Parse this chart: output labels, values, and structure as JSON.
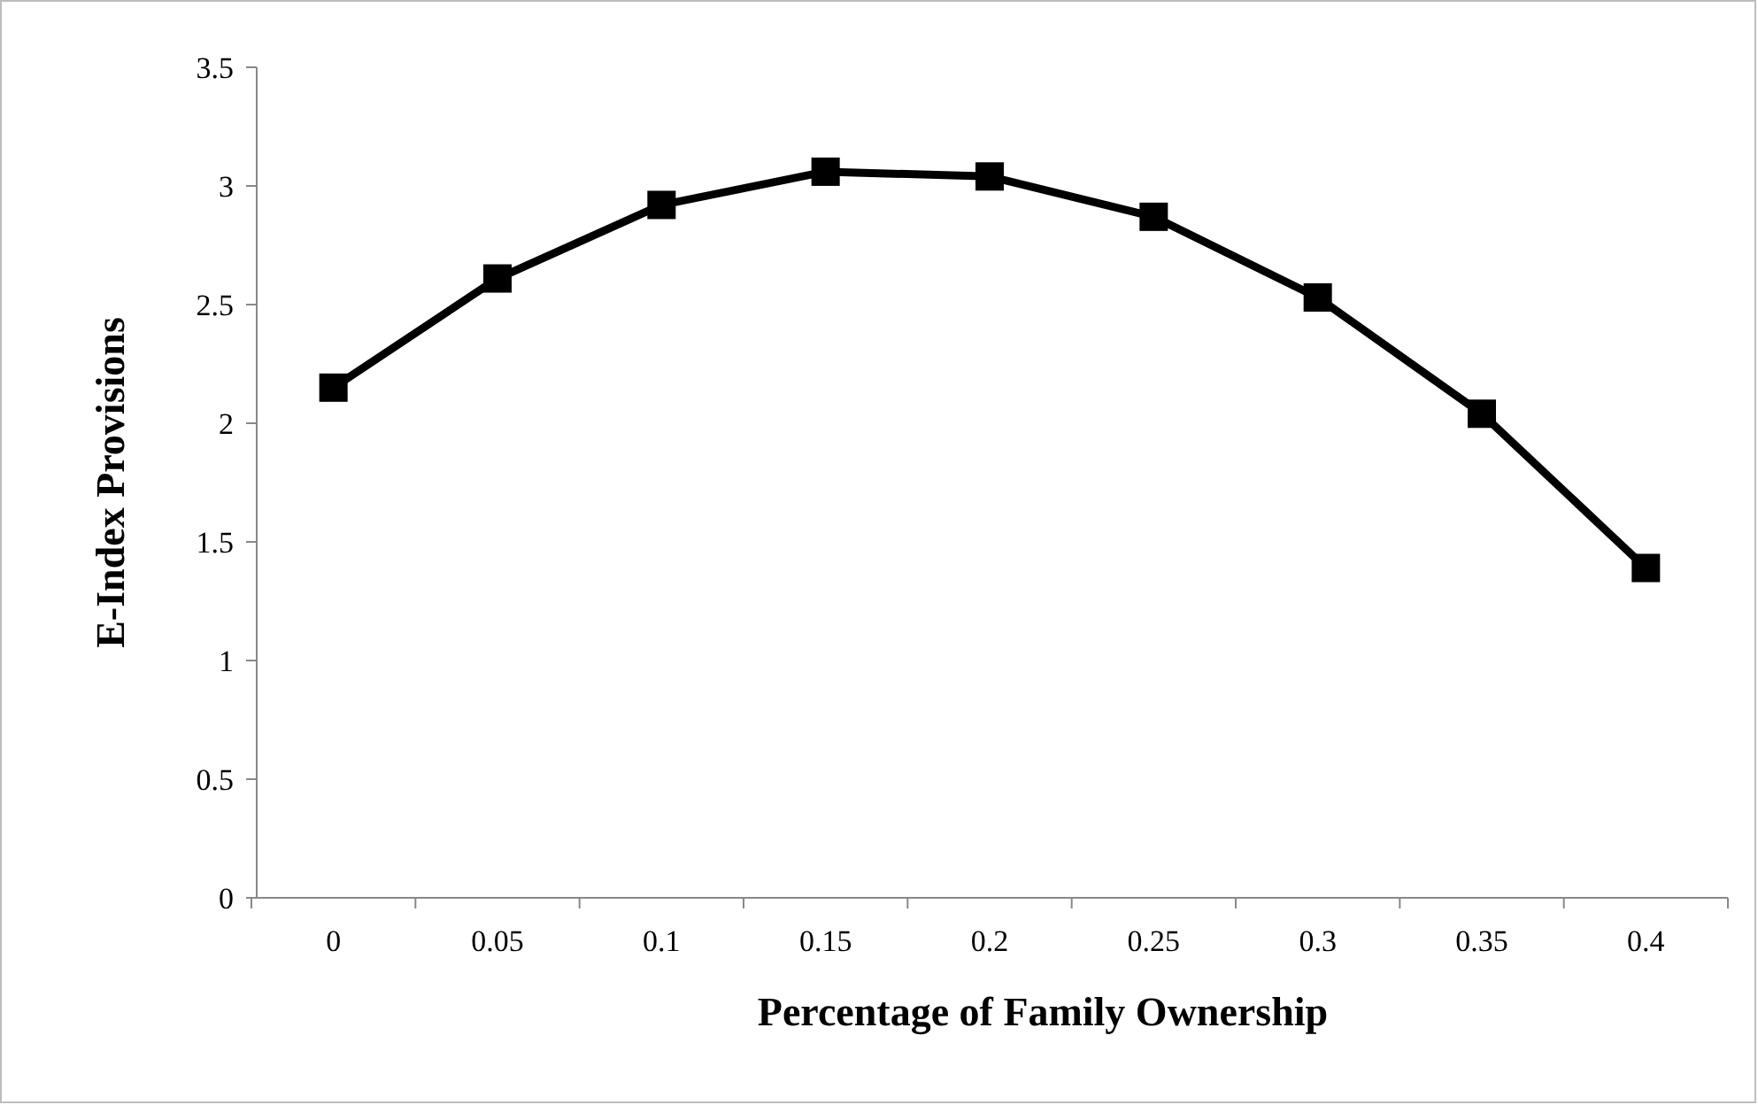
{
  "chart_data": {
    "type": "line",
    "xlabel": "Percentage of Family Ownership",
    "ylabel": "E-Index Provisions",
    "categories": [
      "0",
      "0.05",
      "0.1",
      "0.15",
      "0.2",
      "0.25",
      "0.3",
      "0.35",
      "0.4"
    ],
    "series": [
      {
        "color": "#000000",
        "values": [
          2.15,
          2.61,
          2.92,
          3.06,
          3.04,
          2.87,
          2.53,
          2.04,
          1.39
        ]
      }
    ],
    "ylim": [
      0,
      3.5
    ],
    "yticks": [
      0,
      0.5,
      1,
      1.5,
      2,
      2.5,
      3,
      3.5
    ],
    "grid": false,
    "marker": "square",
    "line_style": "solid"
  }
}
